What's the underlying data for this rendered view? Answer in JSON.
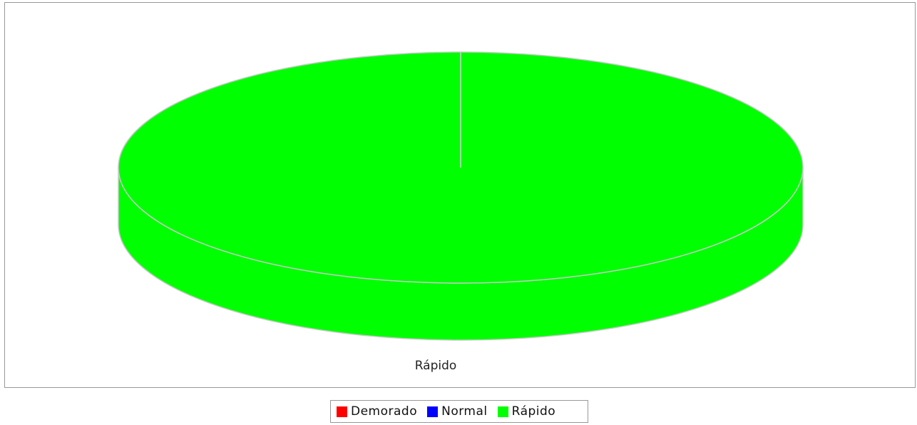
{
  "chart_data": {
    "type": "pie",
    "style": "3d",
    "categories": [
      "Demorado",
      "Normal",
      "Rápido"
    ],
    "values": [
      0,
      0,
      100
    ],
    "colors": [
      "#ff0000",
      "#0000ff",
      "#00ff00"
    ],
    "slice_labels": [
      "Rápido"
    ],
    "legend_position": "bottom"
  },
  "legend": {
    "items": [
      {
        "label": "Demorado",
        "color": "#ff0000"
      },
      {
        "label": "Normal",
        "color": "#0000ff"
      },
      {
        "label": "Rápido",
        "color": "#00ff00"
      }
    ]
  }
}
